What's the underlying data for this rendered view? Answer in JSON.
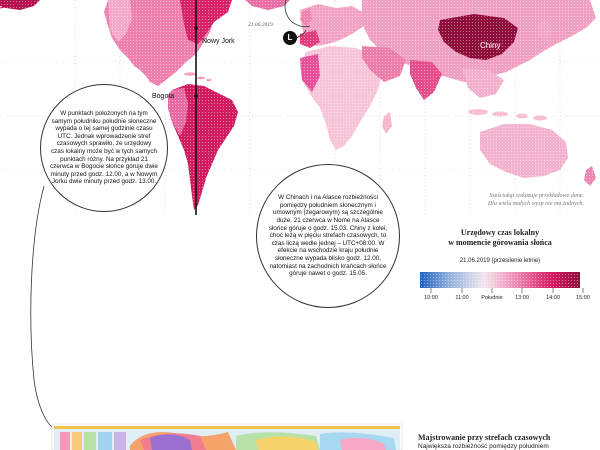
{
  "map": {
    "labels": {
      "new_york": "Nowy Jork",
      "bogota": "Bogota",
      "china": "Chiny",
      "date": "21.06.2019",
      "marker": "L"
    },
    "colors": {
      "blue": "#1f5fbf",
      "pink": "#e22a7a",
      "magenta": "#b31250",
      "dark_red": "#8e0f3b"
    }
  },
  "bubbles": {
    "left": "W punktach położonych na tym samym południku południe słoneczne wypada o tej samej godzinie czasu UTC. Jednak wprowadzenie stref czasowych sprawiło, że urzędowy czas lokalny może być w tych samych punktach różny. Na przykład 21 czerwca w Bogocie słońce góruje dwie minuty przed godz. 12.00, a w Nowym Jorku dwie minuty przed godz. 13.00.",
    "center": "W Chinach i na Alasce rozbieżności pomiędzy południem słonecznym i umownym (zegarowym) są szczególnie duże. 21 czerwca w Nome na Alasce słońce góruje o godz. 15.03. Chiny z kolei, choć leżą w pięciu strefach czasowych, to czas liczą wedle jednej – UTC+08:00. W efekcie na wschodzie kraju południe słoneczne wypada blisko godz. 12.00, natomiast na zachodnich krańcach słońce góruje nawet o godz. 15.05."
  },
  "note": {
    "line1": "Sześciokąt wskazuje przykładowe dane.",
    "line2": "Dla wielu małych wysp nie ma żadnych."
  },
  "legend": {
    "title_line1": "Urzędowy czas lokalny",
    "title_line2": "w momencie górowania słońca",
    "date": "21.06.2019 (przesilenie letnie)",
    "ticks": [
      "10:00",
      "11:00",
      "Południe",
      "13:00",
      "14:00",
      "15:00"
    ]
  },
  "bottom_box": {
    "title": "Majstrowanie przy strefach czasowych",
    "text": "Największa rozbieżność pomiędzy południem"
  }
}
